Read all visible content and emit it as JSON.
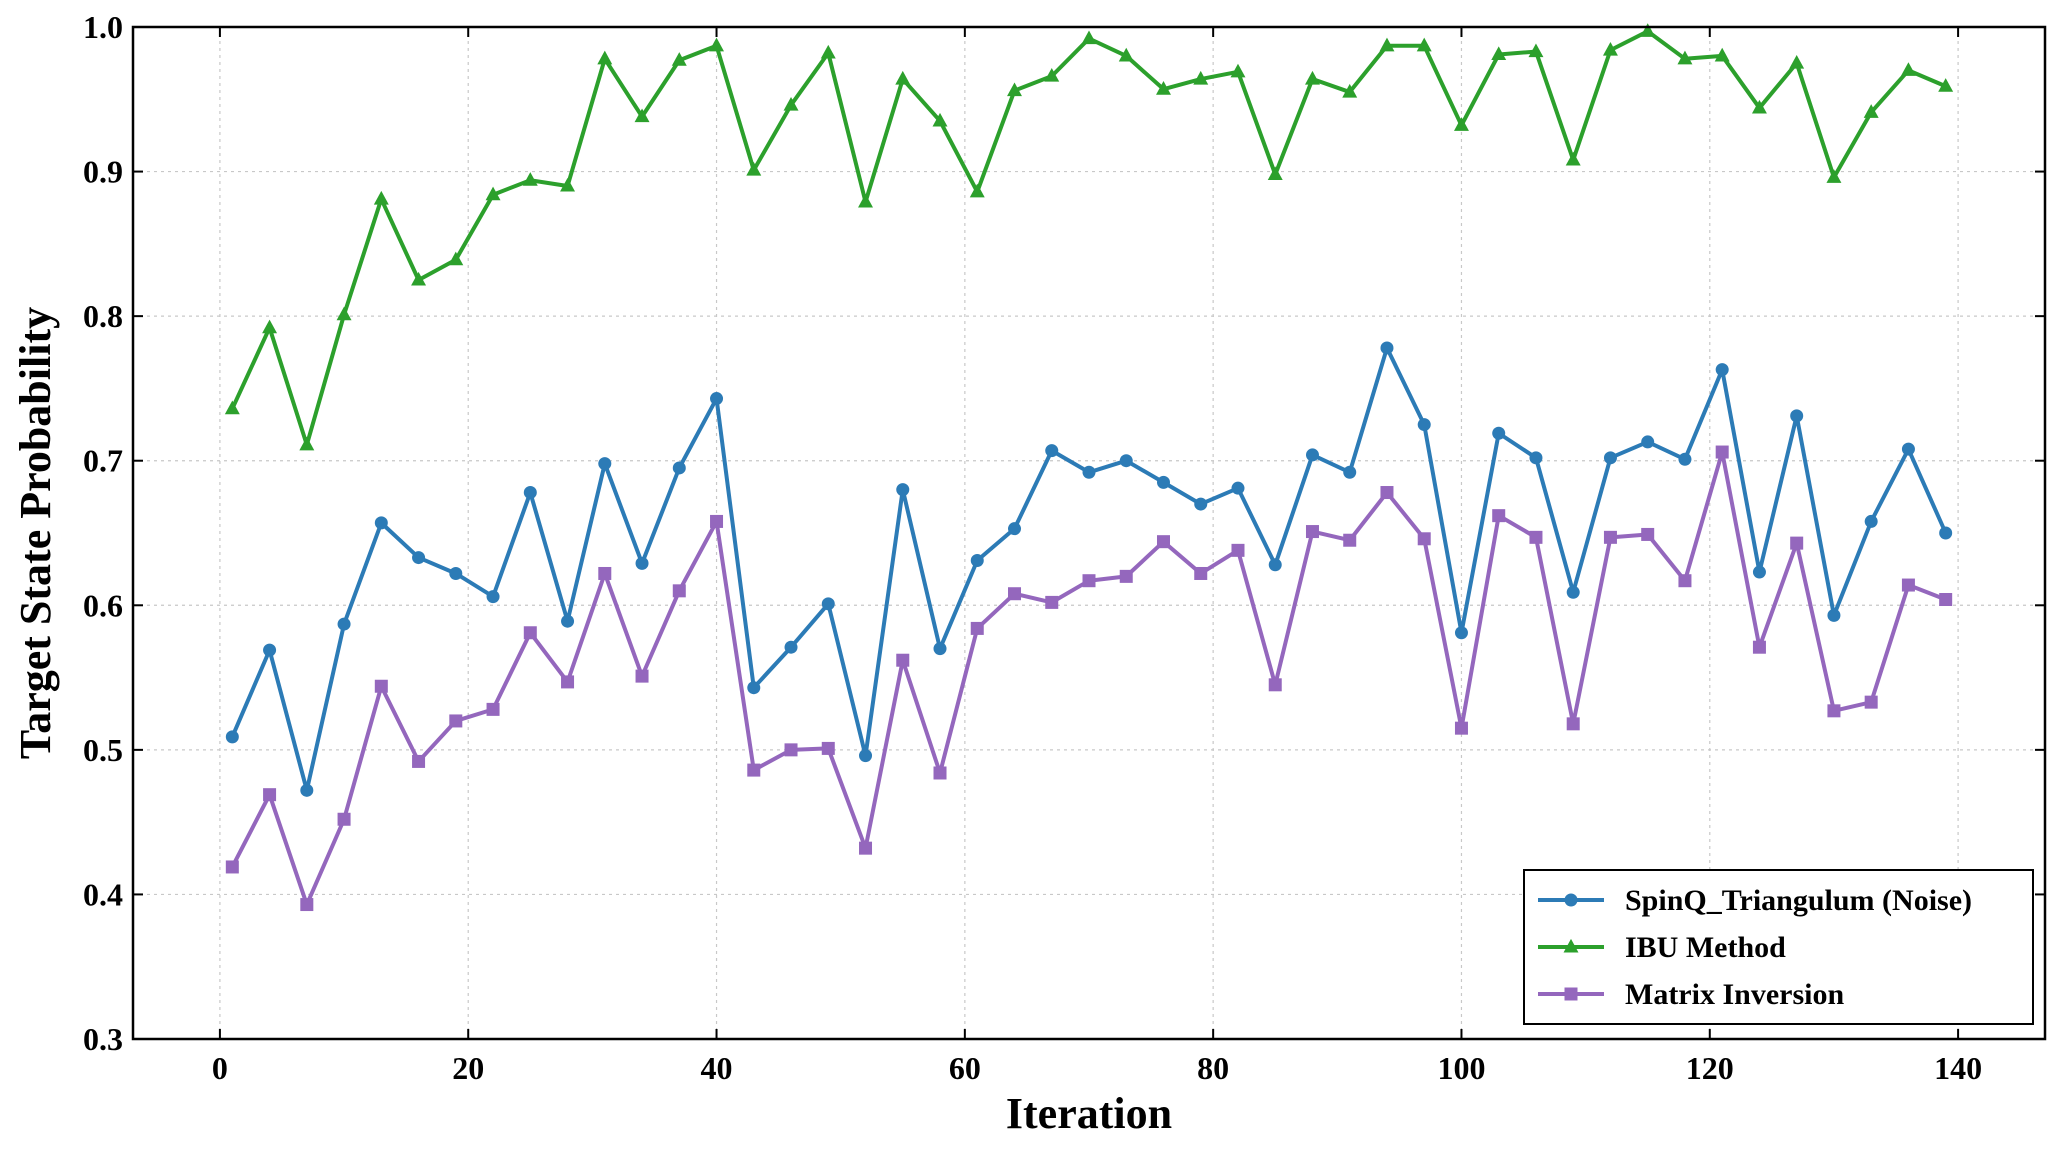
{
  "chart_data": {
    "type": "line",
    "xlabel": "Iteration",
    "ylabel": "Target State Probability",
    "xlim": [
      -7,
      147
    ],
    "ylim": [
      0.3,
      1.0
    ],
    "x_ticks": [
      0,
      20,
      40,
      60,
      80,
      100,
      120,
      140
    ],
    "y_ticks": [
      0.3,
      0.4,
      0.5,
      0.6,
      0.7,
      0.8,
      0.9,
      1.0
    ],
    "x_tick_labels": [
      "0",
      "20",
      "40",
      "60",
      "80",
      "100",
      "120",
      "140"
    ],
    "y_tick_labels": [
      "0.3",
      "0.4",
      "0.5",
      "0.6",
      "0.7",
      "0.8",
      "0.9",
      "1.0"
    ],
    "grid": true,
    "legend_position": "bottom-right",
    "x": [
      1,
      4,
      7,
      10,
      13,
      16,
      19,
      22,
      25,
      28,
      31,
      34,
      37,
      40,
      43,
      46,
      49,
      52,
      55,
      58,
      61,
      64,
      67,
      70,
      73,
      76,
      79,
      82,
      85,
      88,
      91,
      94,
      97,
      100,
      103,
      106,
      109,
      112,
      115,
      118,
      121,
      124,
      127,
      130,
      133,
      136,
      139
    ],
    "series": [
      {
        "name": "SpinQ_Triangulum (Noise)",
        "color": "#2c7bb6",
        "marker": "circle",
        "values": [
          0.509,
          0.569,
          0.472,
          0.587,
          0.657,
          0.633,
          0.622,
          0.606,
          0.678,
          0.589,
          0.698,
          0.629,
          0.695,
          0.743,
          0.543,
          0.571,
          0.601,
          0.496,
          0.68,
          0.57,
          0.631,
          0.653,
          0.707,
          0.692,
          0.7,
          0.685,
          0.67,
          0.681,
          0.628,
          0.704,
          0.692,
          0.778,
          0.725,
          0.581,
          0.719,
          0.702,
          0.609,
          0.702,
          0.713,
          0.701,
          0.763,
          0.623,
          0.731,
          0.593,
          0.658,
          0.708,
          0.65
        ]
      },
      {
        "name": "IBU Method",
        "color": "#2ca02c",
        "marker": "triangle",
        "values": [
          0.736,
          0.792,
          0.711,
          0.801,
          0.881,
          0.825,
          0.839,
          0.884,
          0.894,
          0.89,
          0.978,
          0.938,
          0.977,
          0.987,
          0.901,
          0.946,
          0.982,
          0.879,
          0.964,
          0.935,
          0.886,
          0.956,
          0.966,
          0.992,
          0.98,
          0.957,
          0.964,
          0.969,
          0.898,
          0.964,
          0.955,
          0.987,
          0.987,
          0.932,
          0.981,
          0.983,
          0.908,
          0.984,
          0.997,
          0.978,
          0.98,
          0.944,
          0.975,
          0.896,
          0.941,
          0.97,
          0.959
        ]
      },
      {
        "name": "Matrix Inversion",
        "color": "#9467bd",
        "marker": "square",
        "values": [
          0.419,
          0.469,
          0.393,
          0.452,
          0.544,
          0.492,
          0.52,
          0.528,
          0.581,
          0.547,
          0.622,
          0.551,
          0.61,
          0.658,
          0.486,
          0.5,
          0.501,
          0.432,
          0.562,
          0.484,
          0.584,
          0.608,
          0.602,
          0.617,
          0.62,
          0.644,
          0.622,
          0.638,
          0.545,
          0.651,
          0.645,
          0.678,
          0.646,
          0.515,
          0.662,
          0.647,
          0.518,
          0.647,
          0.649,
          0.617,
          0.706,
          0.571,
          0.643,
          0.527,
          0.533,
          0.614,
          0.604
        ]
      }
    ]
  }
}
